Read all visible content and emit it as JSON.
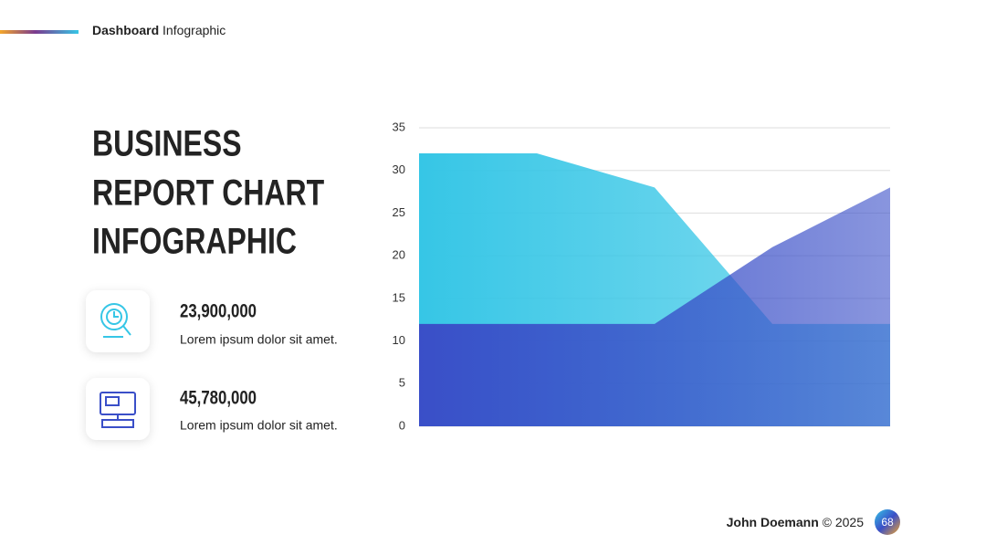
{
  "header": {
    "bold": "Dashboard",
    "rest": "Infographic"
  },
  "title_lines": [
    "BUSINESS",
    "REPORT CHART",
    "INFOGRAPHIC"
  ],
  "stats": [
    {
      "value": "23,900,000",
      "text": "Lorem ipsum dolor sit amet."
    },
    {
      "value": "45,780,000",
      "text": "Lorem ipsum dolor sit amet."
    }
  ],
  "footer": {
    "author": "John Doemann",
    "copyright": "© 2025",
    "page": "68"
  },
  "chart_data": {
    "type": "area",
    "categories": [
      null,
      null,
      null,
      null,
      null
    ],
    "series": [
      {
        "color": "#36c6e6",
        "values": [
          32,
          32,
          28,
          12,
          12
        ]
      },
      {
        "color": "#3a4fc8",
        "values": [
          12,
          12,
          12,
          21,
          28
        ]
      }
    ],
    "ylim": [
      0,
      35
    ],
    "yticks": [
      0,
      5,
      10,
      15,
      20,
      25,
      30,
      35
    ],
    "grid": true
  }
}
